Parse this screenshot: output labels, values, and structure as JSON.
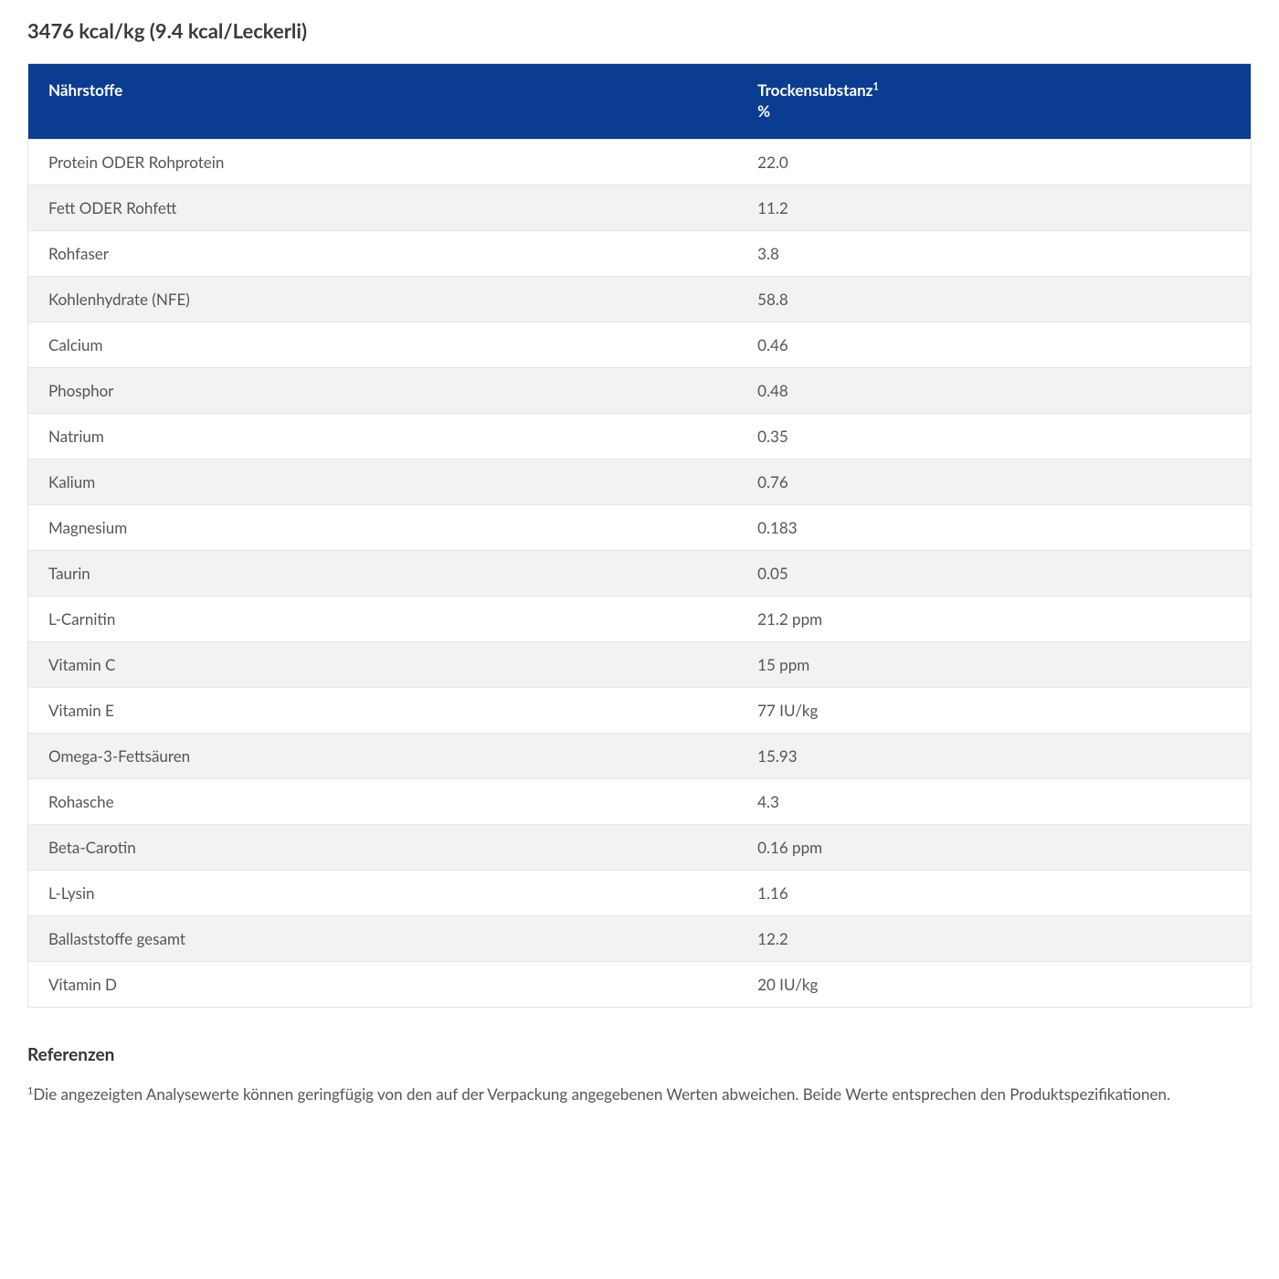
{
  "title": "3476 kcal/kg (9.4 kcal/Leckerli)",
  "table": {
    "header": {
      "col1": "Nährstoffe",
      "col2_line1": "Trockensubstanz",
      "col2_sup": "1",
      "col2_line2": "%"
    },
    "header_bg": "#0a3d91",
    "header_fg": "#ffffff",
    "row_alt_bg": "#f2f2f2",
    "border_color": "#e5e5e5",
    "rows": [
      {
        "name": "Protein ODER Rohprotein",
        "value": "22.0"
      },
      {
        "name": "Fett ODER Rohfett",
        "value": "11.2"
      },
      {
        "name": "Rohfaser",
        "value": "3.8"
      },
      {
        "name": "Kohlenhydrate (NFE)",
        "value": "58.8"
      },
      {
        "name": "Calcium",
        "value": "0.46"
      },
      {
        "name": "Phosphor",
        "value": "0.48"
      },
      {
        "name": "Natrium",
        "value": "0.35"
      },
      {
        "name": "Kalium",
        "value": "0.76"
      },
      {
        "name": "Magnesium",
        "value": "0.183"
      },
      {
        "name": "Taurin",
        "value": "0.05"
      },
      {
        "name": "L-Carnitin",
        "value": "21.2 ppm"
      },
      {
        "name": "Vitamin C",
        "value": "15 ppm"
      },
      {
        "name": "Vitamin E",
        "value": "77 IU/kg"
      },
      {
        "name": "Omega-3-Fettsäuren",
        "value": "15.93"
      },
      {
        "name": "Rohasche",
        "value": "4.3"
      },
      {
        "name": "Beta-Carotin",
        "value": "0.16 ppm"
      },
      {
        "name": "L-Lysin",
        "value": "1.16"
      },
      {
        "name": "Ballaststoffe gesamt",
        "value": "12.2"
      },
      {
        "name": "Vitamin D",
        "value": "20 IU/kg"
      }
    ]
  },
  "references": {
    "heading": "Referenzen",
    "sup": "1",
    "text": "Die angezeigten Analysewerte können geringfügig von den auf der Verpackung angegebenen Werten abweichen. Beide Werte entsprechen den Produktspezifikationen."
  }
}
